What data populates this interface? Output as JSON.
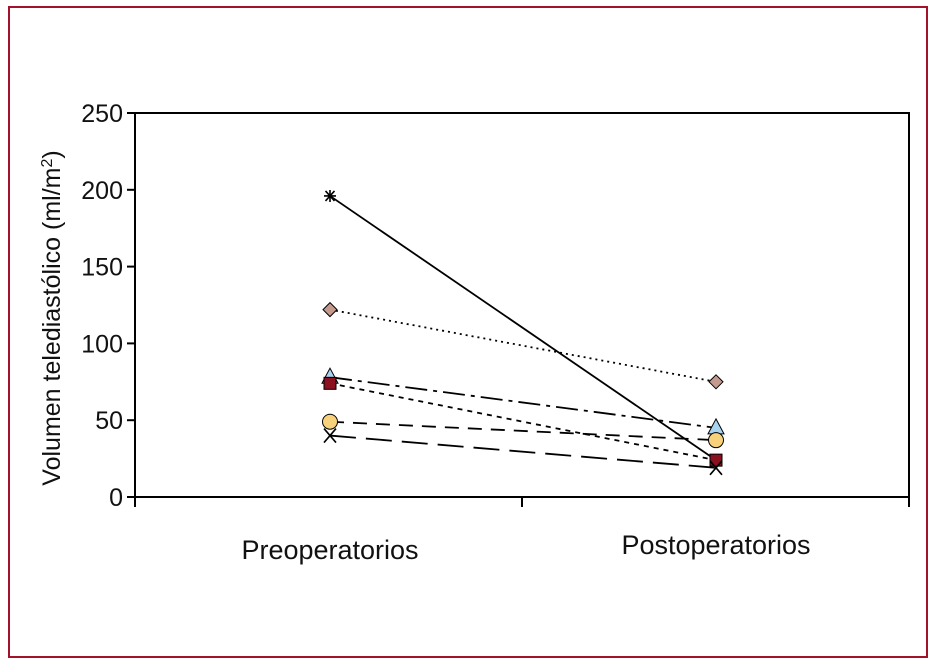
{
  "chart_data": {
    "type": "line",
    "categories": [
      "Preoperatorios",
      "Postoperatorios"
    ],
    "ylabel": "Volumen telediastólico (ml/m",
    "ylabel_sup": "2",
    "ylabel_end": ")",
    "ylim": [
      0,
      250
    ],
    "yticks": [
      0,
      50,
      100,
      150,
      200,
      250
    ],
    "grid": false,
    "legend": "none",
    "frame_color": "#a3122a",
    "series": [
      {
        "marker": "asterisk",
        "line": "solid",
        "marker_color": "#000000",
        "values": [
          196,
          24
        ]
      },
      {
        "marker": "diamond",
        "line": "dotted",
        "marker_color": "#c49a8e",
        "values": [
          122,
          75
        ]
      },
      {
        "marker": "triangle",
        "line": "dashdot",
        "marker_color": "#a8d4f0",
        "values": [
          78,
          45
        ]
      },
      {
        "marker": "square",
        "line": "short-dash",
        "marker_color": "#8b1020",
        "values": [
          74,
          24
        ]
      },
      {
        "marker": "circle",
        "line": "dashed",
        "marker_color": "#f7d27a",
        "values": [
          49,
          37
        ]
      },
      {
        "marker": "x",
        "line": "long-dash",
        "marker_color": "#000000",
        "values": [
          40,
          19
        ]
      }
    ]
  }
}
